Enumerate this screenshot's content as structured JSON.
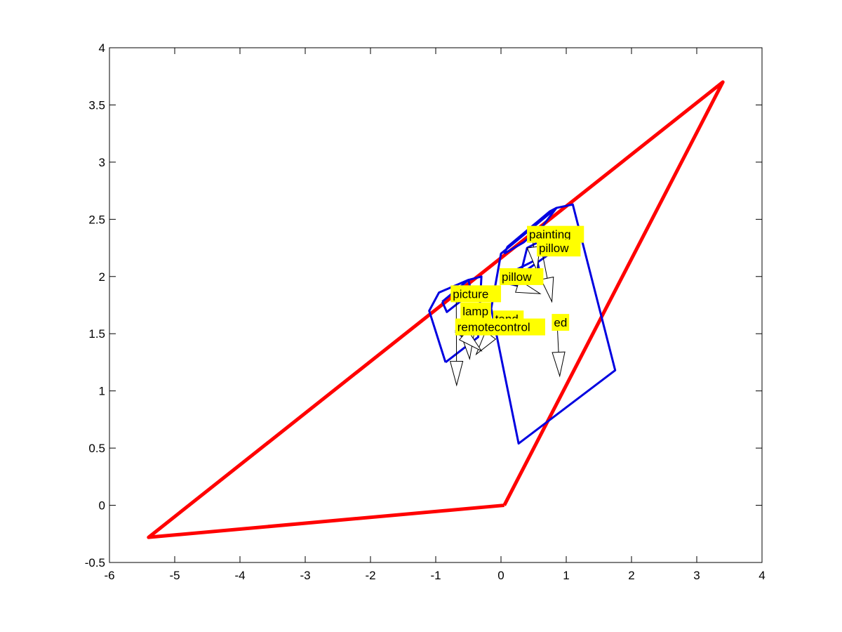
{
  "chart_data": {
    "type": "line",
    "title": "",
    "xlabel": "",
    "ylabel": "",
    "xlim": [
      -6,
      4
    ],
    "ylim": [
      -0.5,
      4
    ],
    "xticks": [
      "-6",
      "-5",
      "-4",
      "-3",
      "-2",
      "-1",
      "0",
      "1",
      "2",
      "3",
      "4"
    ],
    "yticks": [
      "-0.5",
      "0",
      "0.5",
      "1",
      "1.5",
      "2",
      "2.5",
      "3",
      "3.5",
      "4"
    ],
    "grid": false,
    "colors": {
      "camera": "#ff0000",
      "objects": "#0000e0",
      "label_bg": "#ffff00"
    },
    "series": [
      {
        "role": "camera-frustum",
        "points": [
          [
            0.05,
            0.0
          ],
          [
            3.4,
            3.7
          ],
          [
            -5.4,
            -0.28
          ],
          [
            0.05,
            0.0
          ]
        ]
      },
      {
        "role": "object-outline",
        "points": [
          [
            0.85,
            2.6
          ],
          [
            1.1,
            2.63
          ],
          [
            1.75,
            1.18
          ],
          [
            0.27,
            0.54
          ],
          [
            -0.15,
            1.72
          ],
          [
            0.0,
            2.2
          ],
          [
            0.85,
            2.6
          ]
        ]
      },
      {
        "role": "object-outline",
        "points": [
          [
            -0.85,
            1.25
          ],
          [
            -0.35,
            1.47
          ],
          [
            -0.3,
            2.0
          ],
          [
            -0.5,
            1.97
          ],
          [
            -0.95,
            1.86
          ],
          [
            -1.1,
            1.7
          ],
          [
            -0.85,
            1.25
          ]
        ]
      },
      {
        "role": "object-outline",
        "points": [
          [
            -0.9,
            1.78
          ],
          [
            -0.5,
            1.97
          ],
          [
            -0.45,
            1.86
          ],
          [
            -0.83,
            1.69
          ],
          [
            -0.9,
            1.78
          ]
        ]
      },
      {
        "role": "object-outline",
        "points": [
          [
            0.3,
            2.02
          ],
          [
            0.45,
            2.08
          ],
          [
            0.8,
            2.22
          ],
          [
            0.67,
            2.33
          ],
          [
            0.4,
            2.25
          ],
          [
            0.3,
            2.02
          ]
        ]
      },
      {
        "role": "object-outline",
        "points": [
          [
            0.05,
            2.2
          ],
          [
            0.35,
            2.3
          ],
          [
            0.65,
            2.45
          ],
          [
            0.85,
            2.6
          ],
          [
            0.75,
            2.57
          ],
          [
            0.1,
            2.26
          ],
          [
            0.05,
            2.2
          ]
        ]
      },
      {
        "role": "object-outline",
        "points": [
          [
            0.02,
            1.95
          ],
          [
            0.2,
            2.05
          ],
          [
            0.55,
            2.15
          ],
          [
            0.6,
            2.02
          ],
          [
            0.25,
            1.92
          ],
          [
            0.02,
            1.95
          ]
        ]
      },
      {
        "role": "object-outline",
        "points": [
          [
            -0.7,
            1.52
          ],
          [
            -0.45,
            1.6
          ],
          [
            -0.35,
            1.57
          ],
          [
            -0.6,
            1.48
          ],
          [
            -0.7,
            1.52
          ]
        ]
      }
    ],
    "annotations": [
      {
        "text": "painting",
        "x": 0.42,
        "y": 2.32,
        "arrow_to": [
          0.55,
          2.05
        ]
      },
      {
        "text": "pillow",
        "x": 0.57,
        "y": 2.2,
        "arrow_to": [
          0.78,
          1.78
        ]
      },
      {
        "text": "pillow",
        "x": 0.0,
        "y": 1.95,
        "arrow_to": [
          0.6,
          1.85
        ]
      },
      {
        "text": "picture",
        "x": -0.75,
        "y": 1.8,
        "arrow_to": [
          -0.68,
          1.05
        ]
      },
      {
        "text": "lamp",
        "x": -0.6,
        "y": 1.65,
        "arrow_to": [
          -0.48,
          1.28
        ]
      },
      {
        "text": "tand",
        "x": -0.1,
        "y": 1.58,
        "arrow_to": [
          -0.38,
          1.32
        ]
      },
      {
        "text": "ed",
        "x": 0.8,
        "y": 1.55,
        "arrow_to": [
          0.9,
          1.13
        ]
      },
      {
        "text": "remotecontrol",
        "x": -0.68,
        "y": 1.51,
        "arrow_to": [
          -0.3,
          1.35
        ]
      }
    ]
  }
}
